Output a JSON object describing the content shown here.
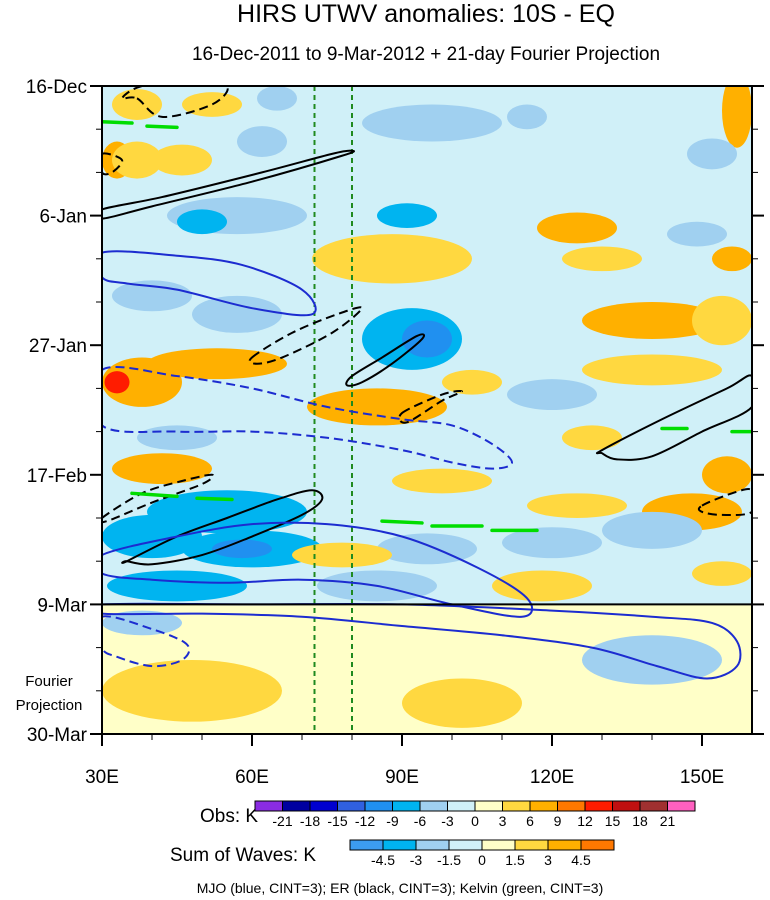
{
  "chart_data": {
    "type": "heatmap",
    "title": "HIRS UTWV anomalies: 10S - EQ",
    "subtitle": "16-Dec-2011 to 9-Mar-2012 + 21-day Fourier Projection",
    "x_axis": {
      "range": [
        30,
        160
      ],
      "ticks": [
        30,
        60,
        90,
        120,
        150
      ],
      "tick_labels": [
        "30E",
        "60E",
        "90E",
        "120E",
        "150E"
      ]
    },
    "y_axis": {
      "range_days": [
        0,
        105
      ],
      "ticks": [
        0,
        21,
        42,
        63,
        84,
        105
      ],
      "tick_labels": [
        "16-Dec",
        "6-Jan",
        "27-Jan",
        "17-Feb",
        "9-Mar",
        "30-Mar"
      ],
      "reversed": true
    },
    "projection_start_day": 84,
    "projection_label_line1": "Fourier",
    "projection_label_line2": "Projection",
    "vertical_lines_lon": [
      72.5,
      80
    ],
    "vertical_line_color": "#1f8a1f",
    "obs_colorbar": {
      "label": "Obs: K",
      "levels": [
        "-21",
        "-18",
        "-15",
        "-12",
        "-9",
        "-6",
        "-3",
        "0",
        "3",
        "6",
        "9",
        "12",
        "15",
        "18",
        "21"
      ],
      "colors": [
        "#8a2be2",
        "#0000a0",
        "#0000d0",
        "#3060e0",
        "#2090f0",
        "#00b4f0",
        "#a0d0f0",
        "#d0f0f8",
        "#ffffc8",
        "#ffd840",
        "#ffb000",
        "#ff7800",
        "#ff1c00",
        "#c01010",
        "#a03030",
        "#ff60c0"
      ]
    },
    "waves_colorbar": {
      "label": "Sum of Waves: K",
      "levels": [
        "-4.5",
        "-3",
        "-1.5",
        "0",
        "1.5",
        "3",
        "4.5"
      ],
      "colors": [
        "#3c9cf0",
        "#00b4f0",
        "#a0d0f0",
        "#d0f0f8",
        "#ffffc8",
        "#ffd840",
        "#ffb000",
        "#ff7800"
      ]
    },
    "legend_caption": "MJO (blue, CINT=3); ER (black, CINT=3); Kelvin (green, CINT=3)",
    "contours": [
      {
        "wave": "ER",
        "sign": "neg",
        "color": "#000000",
        "pts": [
          [
            37,
            2
          ],
          [
            42,
            5
          ],
          [
            52,
            3
          ],
          [
            55,
            0
          ],
          [
            48,
            -1
          ],
          [
            38,
            0
          ],
          [
            34,
            2
          ]
        ]
      },
      {
        "wave": "ER",
        "sign": "neg",
        "color": "#000000",
        "pts": [
          [
            30,
            11
          ],
          [
            34,
            12
          ],
          [
            32,
            14
          ],
          [
            30,
            14
          ]
        ]
      },
      {
        "wave": "ER",
        "sign": "pos",
        "color": "#000000",
        "pts": [
          [
            30,
            20
          ],
          [
            42,
            18
          ],
          [
            62,
            14
          ],
          [
            76,
            11
          ],
          [
            80,
            10.5
          ],
          [
            78,
            11.3
          ],
          [
            60,
            15.5
          ],
          [
            40,
            19.5
          ],
          [
            30,
            21.5
          ]
        ]
      },
      {
        "wave": "MJO",
        "sign": "pos",
        "color": "#1c2cd0",
        "pts": [
          [
            30,
            27
          ],
          [
            45,
            27.5
          ],
          [
            58,
            29
          ],
          [
            70,
            33
          ],
          [
            72,
            37
          ],
          [
            60,
            36
          ],
          [
            45,
            33
          ],
          [
            35,
            32
          ],
          [
            30,
            31
          ]
        ]
      },
      {
        "wave": "ER",
        "sign": "neg",
        "color": "#000000",
        "pts": [
          [
            60,
            44
          ],
          [
            68,
            40
          ],
          [
            77,
            37
          ],
          [
            82,
            36
          ],
          [
            76,
            40
          ],
          [
            66,
            44
          ],
          [
            61,
            45
          ]
        ]
      },
      {
        "wave": "ER",
        "sign": "pos",
        "color": "#000000",
        "pts": [
          [
            80,
            47
          ],
          [
            86,
            44
          ],
          [
            93,
            40.5
          ],
          [
            94,
            41
          ],
          [
            88,
            45
          ],
          [
            82,
            48
          ],
          [
            79,
            48.5
          ]
        ]
      },
      {
        "wave": "MJO",
        "sign": "neg",
        "color": "#1c2cd0",
        "pts": [
          [
            30,
            46
          ],
          [
            45,
            47
          ],
          [
            60,
            49
          ],
          [
            75,
            52
          ],
          [
            90,
            54
          ],
          [
            100,
            55
          ],
          [
            108,
            58
          ],
          [
            112,
            61
          ],
          [
            108,
            62
          ],
          [
            100,
            61
          ],
          [
            90,
            59
          ],
          [
            75,
            57
          ],
          [
            60,
            56
          ],
          [
            45,
            56
          ],
          [
            30,
            55
          ]
        ]
      },
      {
        "wave": "ER",
        "sign": "neg",
        "color": "#000000",
        "pts": [
          [
            90,
            53
          ],
          [
            98,
            50
          ],
          [
            102,
            49.5
          ],
          [
            98,
            51
          ],
          [
            91,
            54.5
          ]
        ]
      },
      {
        "wave": "ER",
        "sign": "pos",
        "color": "#000000",
        "pts": [
          [
            130,
            59
          ],
          [
            142,
            54
          ],
          [
            155,
            49
          ],
          [
            160,
            47
          ],
          [
            160,
            52
          ],
          [
            150,
            56
          ],
          [
            140,
            60
          ],
          [
            133,
            60.5
          ],
          [
            130,
            59.5
          ]
        ]
      },
      {
        "wave": "ER",
        "sign": "neg",
        "color": "#000000",
        "pts": [
          [
            30,
            70
          ],
          [
            38,
            66
          ],
          [
            46,
            64
          ],
          [
            52,
            63
          ],
          [
            50,
            64.5
          ],
          [
            40,
            67.5
          ],
          [
            31,
            70.5
          ]
        ]
      },
      {
        "wave": "ER",
        "sign": "neg",
        "color": "#000000",
        "pts": [
          [
            150,
            68
          ],
          [
            156,
            66
          ],
          [
            160,
            65.5
          ],
          [
            160,
            69
          ],
          [
            154,
            69.5
          ],
          [
            150,
            69
          ]
        ]
      },
      {
        "wave": "ER",
        "sign": "pos",
        "color": "#000000",
        "pts": [
          [
            35,
            77
          ],
          [
            45,
            73
          ],
          [
            55,
            70
          ],
          [
            65,
            67
          ],
          [
            72,
            65.5
          ],
          [
            74,
            67
          ],
          [
            70,
            69.5
          ],
          [
            60,
            73
          ],
          [
            50,
            76
          ],
          [
            40,
            77.5
          ],
          [
            35,
            77
          ]
        ]
      },
      {
        "wave": "MJO",
        "sign": "pos",
        "color": "#1c2cd0",
        "pts": [
          [
            30,
            76
          ],
          [
            45,
            73
          ],
          [
            60,
            71
          ],
          [
            75,
            71
          ],
          [
            90,
            73
          ],
          [
            105,
            78
          ],
          [
            115,
            83
          ],
          [
            114,
            86
          ],
          [
            100,
            84
          ],
          [
            85,
            81
          ],
          [
            70,
            80
          ],
          [
            55,
            80.5
          ],
          [
            40,
            80
          ],
          [
            30,
            79
          ]
        ]
      },
      {
        "wave": "MJO",
        "sign": "pos",
        "color": "#1c2cd0",
        "pts": [
          [
            30,
            84
          ],
          [
            60,
            84
          ],
          [
            90,
            84
          ],
          [
            120,
            85
          ],
          [
            140,
            86
          ],
          [
            152,
            87
          ],
          [
            157,
            90
          ],
          [
            157,
            94
          ],
          [
            151,
            96
          ],
          [
            141,
            94
          ],
          [
            128,
            91
          ],
          [
            110,
            89
          ],
          [
            90,
            87.5
          ],
          [
            70,
            86
          ],
          [
            50,
            85.5
          ],
          [
            30,
            85.5
          ]
        ]
      },
      {
        "wave": "MJO",
        "sign": "neg",
        "color": "#1c2cd0",
        "pts": [
          [
            30,
            86
          ],
          [
            40,
            88
          ],
          [
            47,
            90.5
          ],
          [
            46,
            93
          ],
          [
            40,
            94
          ],
          [
            33,
            92.5
          ],
          [
            30,
            91
          ]
        ]
      }
    ],
    "kelvin_segments": [
      {
        "wave": "Kelvin",
        "color": "#00dd00",
        "pts": [
          [
            30,
            5.8
          ],
          [
            36,
            6
          ]
        ]
      },
      {
        "wave": "Kelvin",
        "color": "#00dd00",
        "pts": [
          [
            39,
            6.5
          ],
          [
            45,
            6.7
          ]
        ]
      },
      {
        "wave": "Kelvin",
        "color": "#00dd00",
        "pts": [
          [
            36,
            66
          ],
          [
            45,
            66.5
          ]
        ]
      },
      {
        "wave": "Kelvin",
        "color": "#00dd00",
        "pts": [
          [
            49,
            66.8
          ],
          [
            56,
            67
          ]
        ]
      },
      {
        "wave": "Kelvin",
        "color": "#00dd00",
        "pts": [
          [
            86,
            70.5
          ],
          [
            94,
            70.8
          ]
        ]
      },
      {
        "wave": "Kelvin",
        "color": "#00dd00",
        "pts": [
          [
            96,
            71.3
          ],
          [
            106,
            71.3
          ]
        ]
      },
      {
        "wave": "Kelvin",
        "color": "#00dd00",
        "pts": [
          [
            108,
            72
          ],
          [
            117,
            72
          ]
        ]
      },
      {
        "wave": "Kelvin",
        "color": "#00dd00",
        "pts": [
          [
            142,
            55.5
          ],
          [
            147,
            55.5
          ]
        ]
      },
      {
        "wave": "Kelvin",
        "color": "#00dd00",
        "pts": [
          [
            156,
            56
          ],
          [
            160,
            56
          ]
        ]
      }
    ],
    "anomaly_blobs": [
      {
        "lon": 37,
        "day": 3,
        "rx": 5,
        "rd": 2.5,
        "level": "3"
      },
      {
        "lon": 52,
        "day": 3,
        "rx": 6,
        "rd": 2,
        "level": "3"
      },
      {
        "lon": 65,
        "day": 2,
        "rx": 4,
        "rd": 2,
        "level": "-3"
      },
      {
        "lon": 33,
        "day": 12,
        "rx": 3,
        "rd": 3,
        "level": "6"
      },
      {
        "lon": 37,
        "day": 12,
        "rx": 5,
        "rd": 3,
        "level": "3"
      },
      {
        "lon": 46,
        "day": 12,
        "rx": 6,
        "rd": 2.5,
        "level": "3"
      },
      {
        "lon": 62,
        "day": 9,
        "rx": 5,
        "rd": 2.5,
        "level": "-3"
      },
      {
        "lon": 96,
        "day": 6,
        "rx": 14,
        "rd": 3,
        "level": "-3"
      },
      {
        "lon": 115,
        "day": 5,
        "rx": 4,
        "rd": 2,
        "level": "-3"
      },
      {
        "lon": 157,
        "day": 4,
        "rx": 3,
        "rd": 6,
        "level": "6"
      },
      {
        "lon": 152,
        "day": 11,
        "rx": 5,
        "rd": 2.5,
        "level": "-3"
      },
      {
        "lon": 57,
        "day": 21,
        "rx": 14,
        "rd": 3,
        "level": "-3"
      },
      {
        "lon": 50,
        "day": 22,
        "rx": 5,
        "rd": 2,
        "level": "-6"
      },
      {
        "lon": 91,
        "day": 21,
        "rx": 6,
        "rd": 2,
        "level": "-6"
      },
      {
        "lon": 125,
        "day": 23,
        "rx": 8,
        "rd": 2.5,
        "level": "6"
      },
      {
        "lon": 149,
        "day": 24,
        "rx": 6,
        "rd": 2,
        "level": "-3"
      },
      {
        "lon": 88,
        "day": 28,
        "rx": 16,
        "rd": 4,
        "level": "3"
      },
      {
        "lon": 130,
        "day": 28,
        "rx": 8,
        "rd": 2,
        "level": "3"
      },
      {
        "lon": 156,
        "day": 28,
        "rx": 4,
        "rd": 2,
        "level": "6"
      },
      {
        "lon": 40,
        "day": 34,
        "rx": 8,
        "rd": 2.5,
        "level": "-3"
      },
      {
        "lon": 57,
        "day": 37,
        "rx": 9,
        "rd": 3,
        "level": "-3"
      },
      {
        "lon": 92,
        "day": 41,
        "rx": 10,
        "rd": 5,
        "level": "-6"
      },
      {
        "lon": 95,
        "day": 41,
        "rx": 5,
        "rd": 3,
        "level": "-9"
      },
      {
        "lon": 140,
        "day": 38,
        "rx": 14,
        "rd": 3,
        "level": "6"
      },
      {
        "lon": 154,
        "day": 38,
        "rx": 6,
        "rd": 4,
        "level": "3"
      },
      {
        "lon": 53,
        "day": 45,
        "rx": 14,
        "rd": 2.5,
        "level": "6"
      },
      {
        "lon": 38,
        "day": 48,
        "rx": 8,
        "rd": 4,
        "level": "6"
      },
      {
        "lon": 33,
        "day": 48,
        "rx": 2.5,
        "rd": 1.8,
        "level": "12"
      },
      {
        "lon": 85,
        "day": 52,
        "rx": 14,
        "rd": 3,
        "level": "6"
      },
      {
        "lon": 104,
        "day": 48,
        "rx": 6,
        "rd": 2,
        "level": "3"
      },
      {
        "lon": 45,
        "day": 57,
        "rx": 8,
        "rd": 2,
        "level": "-3"
      },
      {
        "lon": 120,
        "day": 50,
        "rx": 9,
        "rd": 2.5,
        "level": "-3"
      },
      {
        "lon": 140,
        "day": 46,
        "rx": 14,
        "rd": 2.5,
        "level": "3"
      },
      {
        "lon": 128,
        "day": 57,
        "rx": 6,
        "rd": 2,
        "level": "3"
      },
      {
        "lon": 42,
        "day": 62,
        "rx": 10,
        "rd": 2.5,
        "level": "6"
      },
      {
        "lon": 98,
        "day": 64,
        "rx": 10,
        "rd": 2,
        "level": "3"
      },
      {
        "lon": 155,
        "day": 63,
        "rx": 5,
        "rd": 3,
        "level": "6"
      },
      {
        "lon": 125,
        "day": 68,
        "rx": 10,
        "rd": 2,
        "level": "3"
      },
      {
        "lon": 148,
        "day": 69,
        "rx": 10,
        "rd": 3,
        "level": "6"
      },
      {
        "lon": 55,
        "day": 69,
        "rx": 16,
        "rd": 3.5,
        "level": "-6"
      },
      {
        "lon": 40,
        "day": 73,
        "rx": 10,
        "rd": 3.5,
        "level": "-6"
      },
      {
        "lon": 60,
        "day": 75,
        "rx": 14,
        "rd": 3,
        "level": "-6"
      },
      {
        "lon": 58,
        "day": 75,
        "rx": 6,
        "rd": 1.5,
        "level": "-9"
      },
      {
        "lon": 95,
        "day": 75,
        "rx": 10,
        "rd": 2.5,
        "level": "-3"
      },
      {
        "lon": 78,
        "day": 76,
        "rx": 10,
        "rd": 2,
        "level": "3"
      },
      {
        "lon": 120,
        "day": 74,
        "rx": 10,
        "rd": 2.5,
        "level": "-3"
      },
      {
        "lon": 140,
        "day": 72,
        "rx": 10,
        "rd": 3,
        "level": "-3"
      },
      {
        "lon": 45,
        "day": 81,
        "rx": 14,
        "rd": 2.5,
        "level": "-6"
      },
      {
        "lon": 85,
        "day": 81,
        "rx": 12,
        "rd": 2.5,
        "level": "-3"
      },
      {
        "lon": 118,
        "day": 81,
        "rx": 10,
        "rd": 2.5,
        "level": "3"
      },
      {
        "lon": 154,
        "day": 79,
        "rx": 6,
        "rd": 2,
        "level": "3"
      },
      {
        "lon": 140,
        "day": 93,
        "rx": 14,
        "rd": 4,
        "level": "-3"
      },
      {
        "lon": 48,
        "day": 98,
        "rx": 18,
        "rd": 5,
        "level": "3"
      },
      {
        "lon": 102,
        "day": 100,
        "rx": 12,
        "rd": 4,
        "level": "3"
      },
      {
        "lon": 38,
        "day": 87,
        "rx": 8,
        "rd": 2,
        "level": "-3"
      }
    ]
  }
}
